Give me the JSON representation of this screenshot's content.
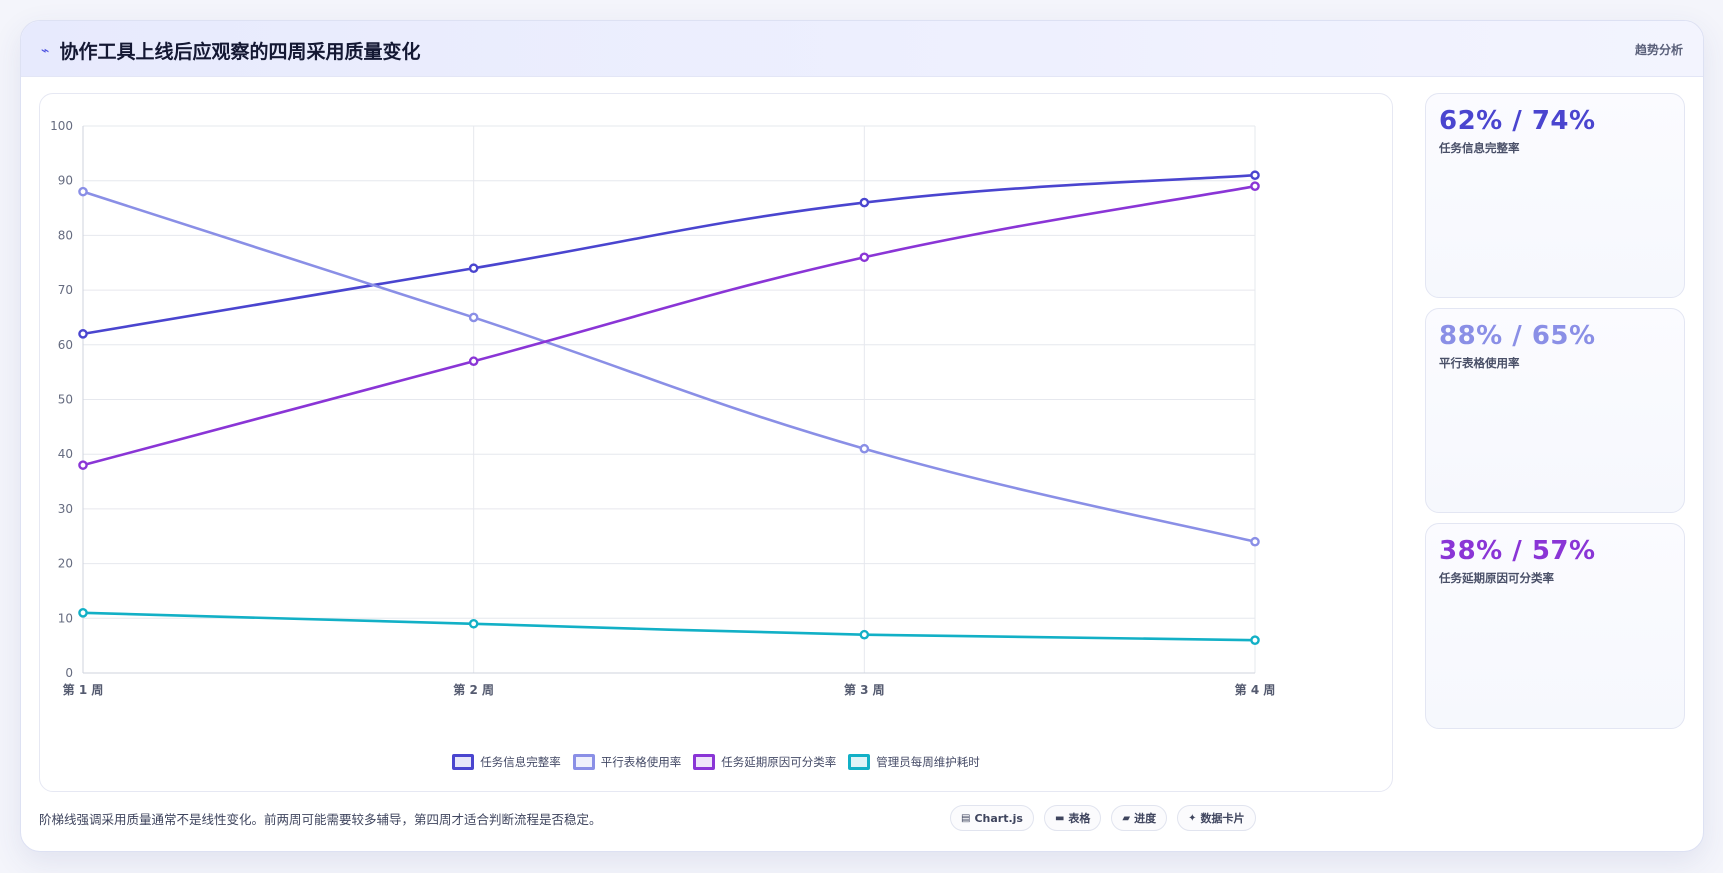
{
  "header": {
    "icon": "trend-arrow-icon",
    "title": "协作工具上线后应观察的四周采用质量变化",
    "right_label": "趋势分析"
  },
  "chart_data": {
    "type": "line",
    "x": [
      "第 1 周",
      "第 2 周",
      "第 3 周",
      "第 4 周"
    ],
    "ylim": [
      0,
      100
    ],
    "yticks": [
      0,
      10,
      20,
      30,
      40,
      50,
      60,
      70,
      80,
      90,
      100
    ],
    "grid": true,
    "legend_position": "bottom",
    "series": [
      {
        "name": "任务信息完整率",
        "color": "#4a45cf",
        "values": [
          62,
          74,
          86,
          91
        ]
      },
      {
        "name": "平行表格使用率",
        "color": "#8a8fe6",
        "values": [
          88,
          65,
          41,
          24
        ]
      },
      {
        "name": "任务延期原因可分类率",
        "color": "#8a35d6",
        "values": [
          38,
          57,
          76,
          89
        ]
      },
      {
        "name": "管理员每周维护耗时",
        "color": "#12b0c6",
        "values": [
          11,
          9,
          7,
          6
        ]
      }
    ]
  },
  "stats": [
    {
      "value": "62% / 74%",
      "label": "任务信息完整率",
      "color": "#4a45cf"
    },
    {
      "value": "88% / 65%",
      "label": "平行表格使用率",
      "color": "#8a8fe6"
    },
    {
      "value": "38% / 57%",
      "label": "任务延期原因可分类率",
      "color": "#8a35d6"
    }
  ],
  "footer": {
    "note": "阶梯线强调采用质量通常不是线性变化。前两周可能需要较多辅导，第四周才适合判断流程是否稳定。",
    "chips": [
      {
        "icon": "chart-icon",
        "glyph": "▤",
        "label": "Chart.js"
      },
      {
        "icon": "table-icon",
        "glyph": "▬",
        "label": "表格"
      },
      {
        "icon": "progress-icon",
        "glyph": "▰",
        "label": "进度"
      },
      {
        "icon": "sparkle-icon",
        "glyph": "✦",
        "label": "数据卡片"
      }
    ]
  }
}
